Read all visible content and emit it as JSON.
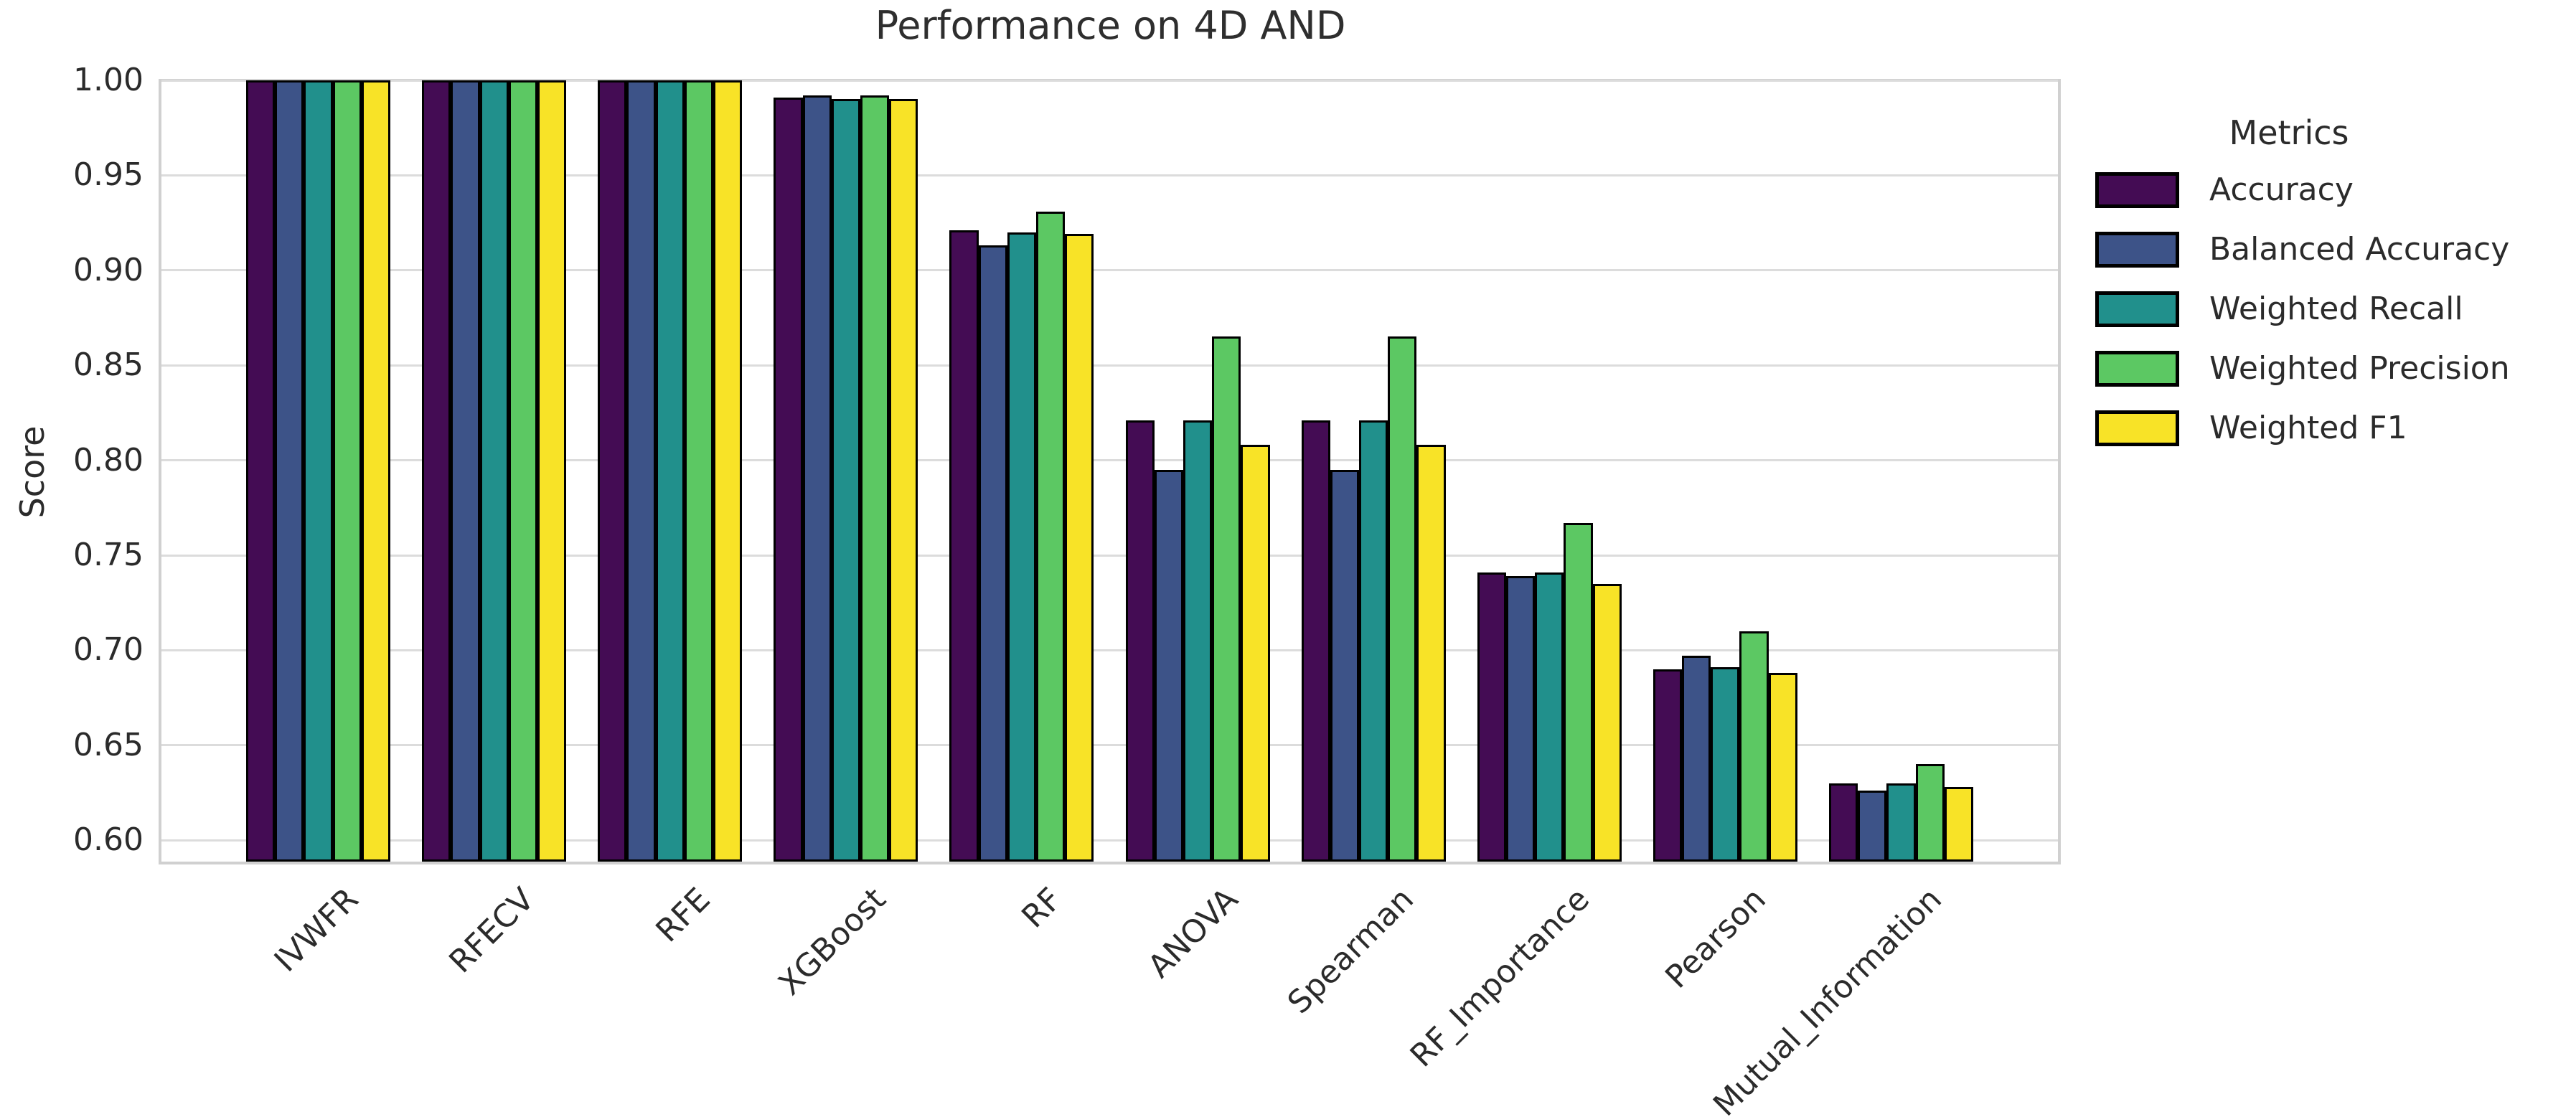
{
  "title": "Performance on 4D AND",
  "ylabel": "Score",
  "legend": {
    "title": "Metrics"
  },
  "chart_data": {
    "type": "bar",
    "title": "Performance on 4D AND",
    "xlabel": "",
    "ylabel": "Score",
    "legend_title": "Metrics",
    "legend_position": "right",
    "grid": true,
    "ylim": [
      0.588,
      1.0
    ],
    "yticks": [
      "1.00",
      "0.95",
      "0.90",
      "0.85",
      "0.80",
      "0.75",
      "0.70",
      "0.65",
      "0.60"
    ],
    "categories": [
      "IVWFR",
      "RFECV",
      "RFE",
      "XGBoost",
      "RF",
      "ANOVA",
      "Spearman",
      "RF_Importance",
      "Pearson",
      "Mutual_Information"
    ],
    "series": [
      {
        "name": "Accuracy",
        "color": "#440c54",
        "values": [
          1.0,
          1.0,
          1.0,
          0.991,
          0.921,
          0.821,
          0.821,
          0.741,
          0.69,
          0.63
        ]
      },
      {
        "name": "Balanced Accuracy",
        "color": "#3d5388",
        "values": [
          1.0,
          1.0,
          1.0,
          0.992,
          0.913,
          0.795,
          0.795,
          0.739,
          0.697,
          0.626
        ]
      },
      {
        "name": "Weighted Recall",
        "color": "#21908c",
        "values": [
          1.0,
          1.0,
          1.0,
          0.99,
          0.92,
          0.821,
          0.821,
          0.741,
          0.691,
          0.63
        ]
      },
      {
        "name": "Weighted Precision",
        "color": "#5cc863",
        "values": [
          1.0,
          1.0,
          1.0,
          0.992,
          0.931,
          0.865,
          0.865,
          0.767,
          0.71,
          0.64
        ]
      },
      {
        "name": "Weighted F1",
        "color": "#f8e327",
        "values": [
          1.0,
          1.0,
          1.0,
          0.99,
          0.919,
          0.808,
          0.808,
          0.735,
          0.688,
          0.628
        ]
      }
    ]
  }
}
